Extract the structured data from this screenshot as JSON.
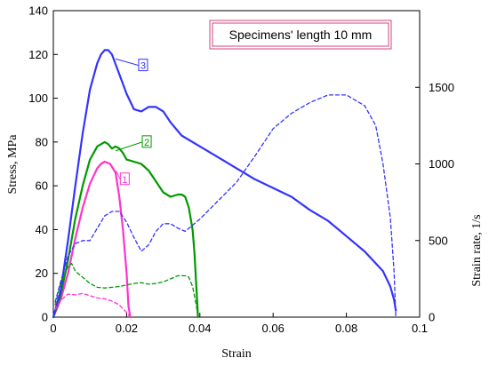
{
  "chart_data": {
    "type": "line",
    "xlabel": "Strain",
    "ylabel_left": "Stress, MPa",
    "ylabel_right": "Strain rate, 1/s",
    "xlim": [
      0,
      0.1
    ],
    "ylim_left": [
      0,
      140
    ],
    "ylim_right": [
      0,
      2000
    ],
    "x_ticks": [
      "0",
      "0.02",
      "0.04",
      "0.06",
      "0.08",
      "0.1"
    ],
    "y_left_ticks": [
      "0",
      "20",
      "40",
      "60",
      "80",
      "100",
      "120",
      "140"
    ],
    "y_right_ticks": [
      "0",
      "500",
      "1000",
      "1500"
    ],
    "grid": false,
    "annotation": "Specimens'  length 10 mm",
    "series": [
      {
        "name": "1",
        "color": "#ff33cc",
        "axis": "left",
        "style": "solid",
        "label_at": [
          0.0195,
          63
        ],
        "x": [
          0,
          0.002,
          0.004,
          0.006,
          0.008,
          0.01,
          0.012,
          0.013,
          0.014,
          0.0155,
          0.017,
          0.018,
          0.019,
          0.02,
          0.0205,
          0.021
        ],
        "y": [
          0,
          8,
          20,
          36,
          50,
          61,
          68,
          70,
          71,
          70,
          66,
          55,
          40,
          20,
          5,
          0
        ]
      },
      {
        "name": "2",
        "color": "#009900",
        "axis": "left",
        "style": "solid",
        "label_at": [
          0.0255,
          80
        ],
        "x": [
          0,
          0.002,
          0.004,
          0.006,
          0.008,
          0.01,
          0.012,
          0.014,
          0.015,
          0.016,
          0.017,
          0.018,
          0.019,
          0.02,
          0.022,
          0.024,
          0.026,
          0.028,
          0.03,
          0.032,
          0.034,
          0.035,
          0.036,
          0.037,
          0.038,
          0.0385,
          0.039,
          0.0395
        ],
        "y": [
          0,
          10,
          26,
          45,
          60,
          72,
          78,
          80,
          79,
          77,
          78,
          77,
          75,
          72,
          71,
          70,
          67,
          62,
          57,
          55,
          56,
          56,
          55,
          50,
          40,
          30,
          15,
          0
        ]
      },
      {
        "name": "3",
        "color": "#3333ff",
        "axis": "left",
        "style": "solid",
        "label_at": [
          0.0245,
          115
        ],
        "x": [
          0,
          0.002,
          0.004,
          0.006,
          0.008,
          0.01,
          0.012,
          0.013,
          0.014,
          0.015,
          0.016,
          0.018,
          0.02,
          0.022,
          0.024,
          0.026,
          0.028,
          0.03,
          0.032,
          0.035,
          0.04,
          0.045,
          0.05,
          0.055,
          0.06,
          0.065,
          0.07,
          0.075,
          0.08,
          0.085,
          0.09,
          0.092,
          0.093,
          0.0935
        ],
        "y": [
          0,
          12,
          35,
          60,
          84,
          104,
          116,
          120,
          122,
          122,
          120,
          111,
          102,
          95,
          94,
          96,
          96,
          94,
          89,
          83,
          78,
          73,
          68,
          63,
          59,
          55,
          49,
          44,
          37,
          30,
          21,
          14,
          8,
          3
        ]
      },
      {
        "name": "1",
        "color": "#ff33cc",
        "axis": "right",
        "style": "dashed",
        "x": [
          0.0005,
          0.002,
          0.004,
          0.006,
          0.008,
          0.01,
          0.012,
          0.014,
          0.016,
          0.018,
          0.02,
          0.021
        ],
        "y": [
          50,
          110,
          150,
          145,
          155,
          140,
          125,
          120,
          105,
          80,
          30,
          0
        ]
      },
      {
        "name": "2",
        "color": "#009900",
        "axis": "right",
        "style": "dashed",
        "x": [
          0.0005,
          0.002,
          0.004,
          0.005,
          0.006,
          0.008,
          0.01,
          0.012,
          0.014,
          0.016,
          0.018,
          0.02,
          0.022,
          0.024,
          0.026,
          0.028,
          0.03,
          0.032,
          0.034,
          0.036,
          0.037,
          0.038,
          0.039,
          0.0395
        ],
        "y": [
          80,
          220,
          330,
          350,
          300,
          260,
          220,
          195,
          190,
          195,
          200,
          210,
          220,
          225,
          215,
          220,
          230,
          250,
          270,
          270,
          260,
          200,
          80,
          0
        ]
      },
      {
        "name": "3",
        "color": "#3333ff",
        "axis": "right",
        "style": "dashed",
        "x": [
          0.0005,
          0.002,
          0.004,
          0.006,
          0.008,
          0.01,
          0.012,
          0.014,
          0.016,
          0.018,
          0.02,
          0.022,
          0.024,
          0.026,
          0.028,
          0.03,
          0.032,
          0.034,
          0.036,
          0.038,
          0.04,
          0.045,
          0.05,
          0.055,
          0.06,
          0.065,
          0.07,
          0.075,
          0.08,
          0.085,
          0.088,
          0.09,
          0.092,
          0.093,
          0.0935
        ],
        "y": [
          100,
          230,
          400,
          480,
          500,
          500,
          580,
          660,
          690,
          690,
          620,
          520,
          430,
          470,
          560,
          610,
          610,
          580,
          560,
          600,
          640,
          760,
          880,
          1050,
          1230,
          1330,
          1400,
          1450,
          1450,
          1380,
          1250,
          1000,
          650,
          300,
          0
        ]
      }
    ]
  }
}
